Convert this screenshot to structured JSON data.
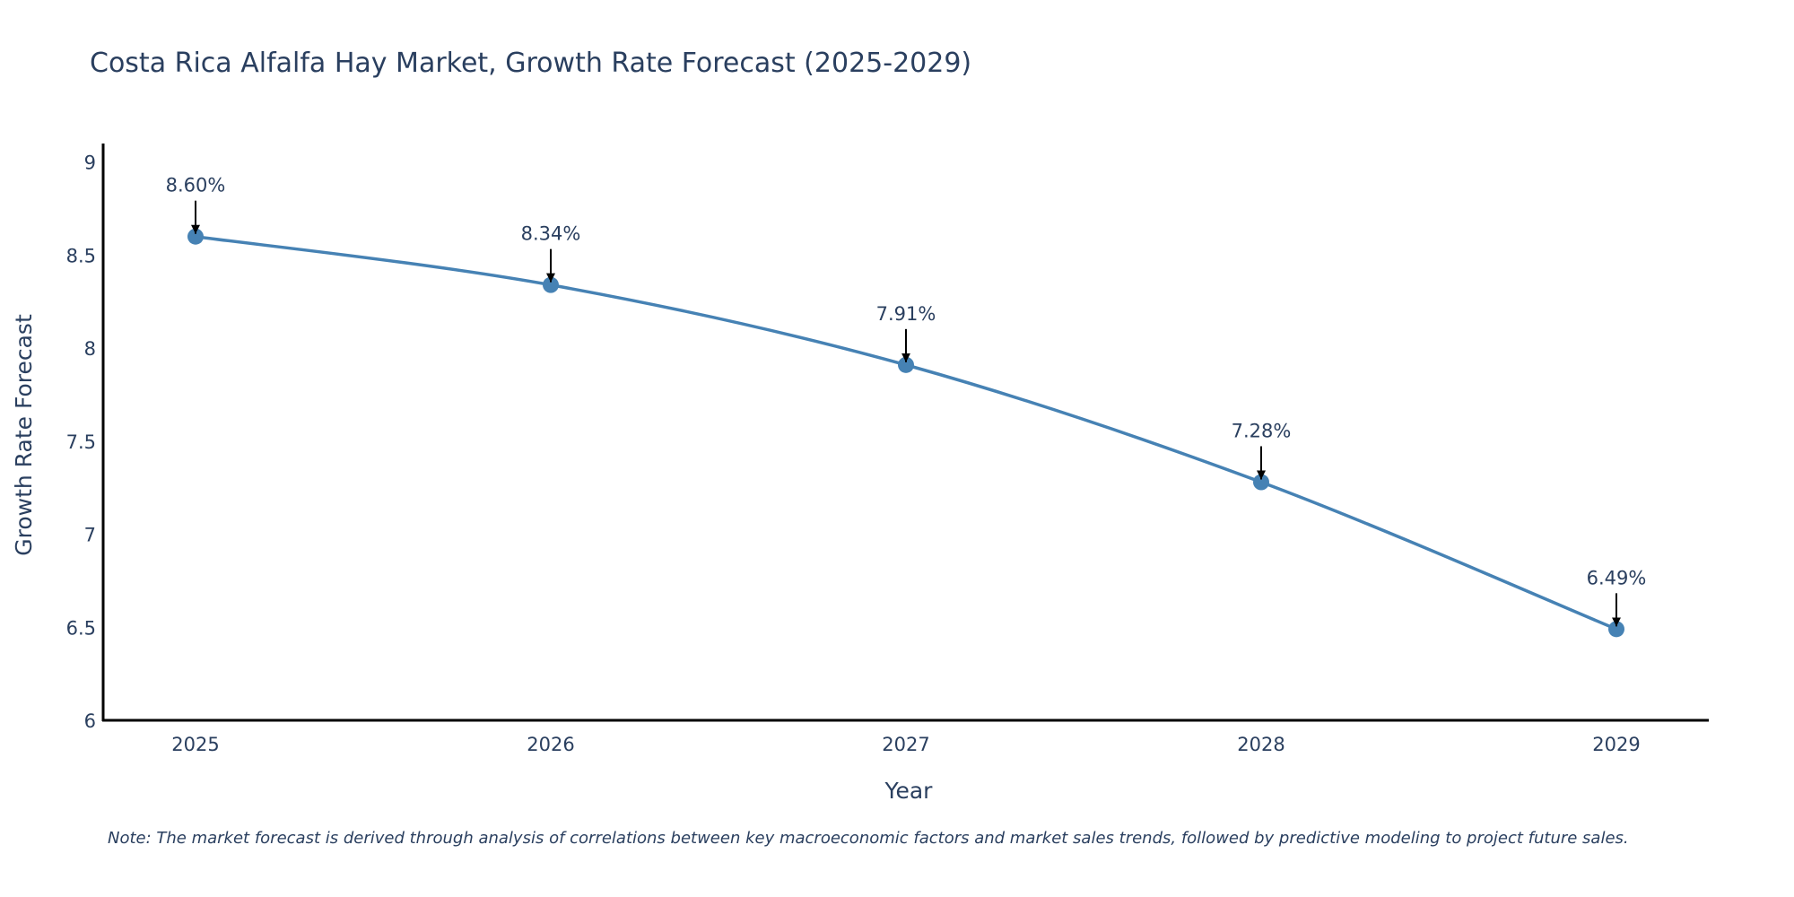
{
  "chart_data": {
    "type": "line",
    "title": "Costa Rica Alfalfa Hay Market, Growth Rate Forecast (2025-2029)",
    "xlabel": "Year",
    "ylabel": "Growth Rate Forecast",
    "x": [
      "2025",
      "2026",
      "2027",
      "2028",
      "2029"
    ],
    "series": [
      {
        "name": "Growth Rate Forecast",
        "values": [
          8.6,
          8.34,
          7.91,
          7.28,
          6.49
        ]
      }
    ],
    "data_labels": [
      "8.60%",
      "8.34%",
      "7.91%",
      "7.28%",
      "6.49%"
    ],
    "yticks": [
      "6",
      "6.5",
      "7",
      "7.5",
      "8",
      "8.5",
      "9"
    ],
    "ylim": [
      6,
      9.1
    ],
    "grid": false,
    "line_shape": "spline",
    "line_color": "#4682b4",
    "marker_color": "#4682b4",
    "text_color": "#2a3f5f",
    "axis_color": "#000000",
    "note": "Note: The market forecast is derived through analysis of correlations between key macroeconomic factors and market sales trends, followed by predictive modeling to project future sales."
  }
}
